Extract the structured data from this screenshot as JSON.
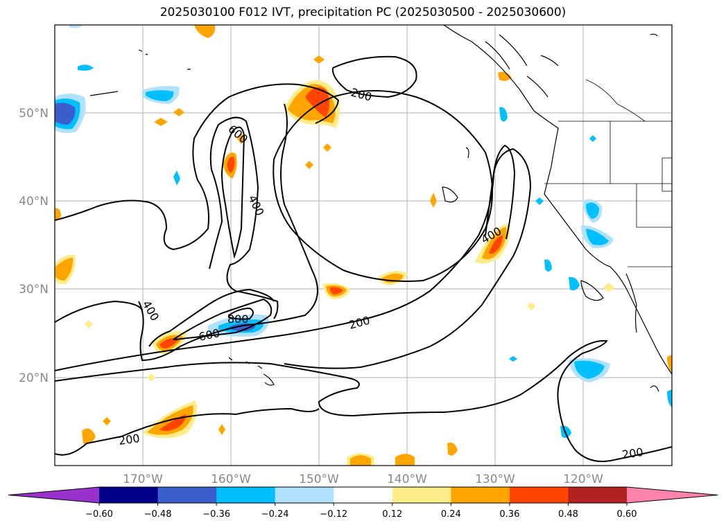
{
  "title": "2025030100 F012 IVT, precipitation PC (2025030500 - 2025030600)",
  "lat_labels": [
    "50°N",
    "40°N",
    "30°N",
    "20°N"
  ],
  "lon_labels": [
    "170°W",
    "160°W",
    "150°W",
    "140°W",
    "130°W",
    "120°W"
  ],
  "contour_labels": [
    "200",
    "600",
    "400",
    "400",
    "400",
    "800",
    "600",
    "200",
    "200",
    "200"
  ],
  "colorbar": {
    "ticks": [
      "−0.60",
      "−0.48",
      "−0.36",
      "−0.24",
      "−0.12",
      "0.12",
      "0.24",
      "0.36",
      "0.48",
      "0.60"
    ],
    "colors": [
      "#9932cc",
      "#00008b",
      "#3a5fcd",
      "#00bfff",
      "#b0e2ff",
      "#ffffff",
      "#ffec8b",
      "#ffa500",
      "#ff4500",
      "#b22222",
      "#ff82ab"
    ]
  }
}
